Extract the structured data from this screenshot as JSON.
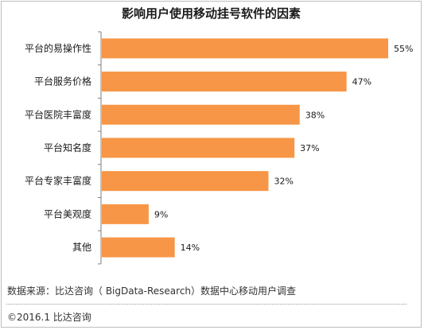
{
  "chart_data": {
    "type": "bar",
    "orientation": "horizontal",
    "title": "影响用户使用移动挂号软件的因素",
    "categories": [
      "平台的易操作性",
      "平台服务价格",
      "平台医院丰富度",
      "平台知名度",
      "平台专家丰富度",
      "平台美观度",
      "其他"
    ],
    "values": [
      55,
      47,
      38,
      37,
      32,
      9,
      14
    ],
    "value_labels": [
      "55%",
      "47%",
      "38%",
      "37%",
      "32%",
      "9%",
      "14%"
    ],
    "bar_color": "#f79646",
    "xlim": [
      0,
      55
    ],
    "grid": false,
    "legend": "none"
  },
  "source": "数据来源：比达咨询（ BigData-Research）数据中心移动用户调查",
  "footer": "©2016.1  比达咨询"
}
